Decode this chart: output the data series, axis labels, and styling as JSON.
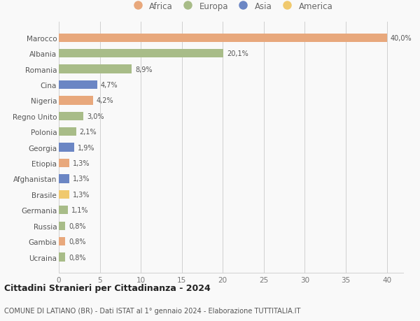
{
  "countries": [
    "Marocco",
    "Albania",
    "Romania",
    "Cina",
    "Nigeria",
    "Regno Unito",
    "Polonia",
    "Georgia",
    "Etiopia",
    "Afghanistan",
    "Brasile",
    "Germania",
    "Russia",
    "Gambia",
    "Ucraina"
  ],
  "values": [
    40.0,
    20.1,
    8.9,
    4.7,
    4.2,
    3.0,
    2.1,
    1.9,
    1.3,
    1.3,
    1.3,
    1.1,
    0.8,
    0.8,
    0.8
  ],
  "labels": [
    "40,0%",
    "20,1%",
    "8,9%",
    "4,7%",
    "4,2%",
    "3,0%",
    "2,1%",
    "1,9%",
    "1,3%",
    "1,3%",
    "1,3%",
    "1,1%",
    "0,8%",
    "0,8%",
    "0,8%"
  ],
  "continents": [
    "Africa",
    "Europa",
    "Europa",
    "Asia",
    "Africa",
    "Europa",
    "Europa",
    "Asia",
    "Africa",
    "Asia",
    "America",
    "Europa",
    "Europa",
    "Africa",
    "Europa"
  ],
  "colors": {
    "Africa": "#E8A87C",
    "Europa": "#A8BC88",
    "Asia": "#6B86C4",
    "America": "#F0C96E"
  },
  "xlim": [
    0,
    42
  ],
  "xticks": [
    0,
    5,
    10,
    15,
    20,
    25,
    30,
    35,
    40
  ],
  "title": "Cittadini Stranieri per Cittadinanza - 2024",
  "subtitle": "COMUNE DI LATIANO (BR) - Dati ISTAT al 1° gennaio 2024 - Elaborazione TUTTITALIA.IT",
  "background_color": "#f9f9f9",
  "grid_color": "#d0d0d0",
  "bar_height": 0.55,
  "legend_order": [
    "Africa",
    "Europa",
    "Asia",
    "America"
  ]
}
